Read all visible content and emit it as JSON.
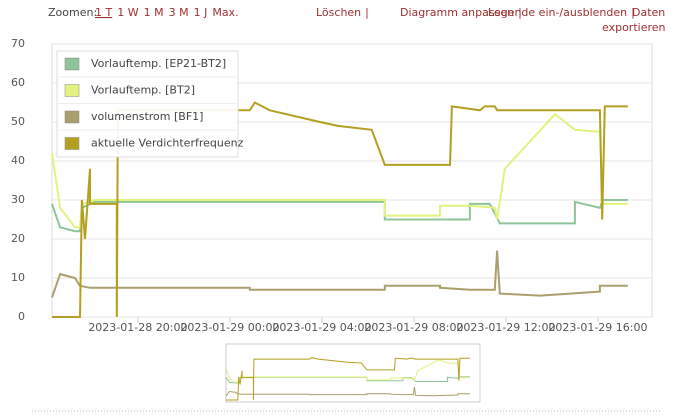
{
  "toolbar": {
    "zoom_label": "Zoomen:",
    "zoom_options": [
      "1 T",
      "1 W",
      "1 M",
      "3 M",
      "1 J",
      "Max."
    ],
    "actions": [
      "Löschen",
      "Diagramm anpassen",
      "Legende ein-/ausblenden",
      "Daten",
      "exportieren"
    ],
    "separator": "|"
  },
  "chart_data": {
    "type": "line",
    "xlim": [
      "2023-01-28 16:16",
      "2023-01-29 18:21"
    ],
    "xticks": [
      "2023-01-28 20:00",
      "2023-01-29 00:00",
      "2023-01-29 04:00",
      "2023-01-29 08:00",
      "2023-01-29 12:00",
      "2023-01-29 16:00"
    ],
    "ylim": [
      0,
      70
    ],
    "yticks": [
      0,
      10,
      20,
      30,
      40,
      50,
      60,
      70
    ],
    "grid": true,
    "legend": "top-left",
    "series": [
      {
        "name": "Vorlauftemp. [EP21-BT2]",
        "color": "#8fc49b",
        "x": [
          "2023-01-28 16:16",
          "2023-01-28 16:37",
          "2023-01-28 17:16",
          "2023-01-28 17:29",
          "2023-01-28 17:34",
          "2023-01-28 18:08",
          "2023-01-29 06:44",
          "2023-01-29 06:44",
          "2023-01-29 10:26",
          "2023-01-29 10:26",
          "2023-01-29 11:18",
          "2023-01-29 11:44",
          "2023-01-29 15:00",
          "2023-01-29 15:00",
          "2023-01-29 16:05",
          "2023-01-29 16:13",
          "2023-01-29 17:18"
        ],
        "values": [
          29,
          23,
          22,
          22,
          28,
          29.5,
          29.5,
          25,
          25,
          29,
          29,
          24,
          24,
          29.5,
          28,
          30,
          30
        ]
      },
      {
        "name": "Vorlauftemp. [BT2]",
        "color": "#e2f27e",
        "x": [
          "2023-01-28 16:16",
          "2023-01-28 16:37",
          "2023-01-28 17:16",
          "2023-01-28 17:29",
          "2023-01-28 17:34",
          "2023-01-28 18:08",
          "2023-01-29 06:44",
          "2023-01-29 06:44",
          "2023-01-29 09:08",
          "2023-01-29 09:08",
          "2023-01-29 10:26",
          "2023-01-29 11:31",
          "2023-01-29 11:37",
          "2023-01-29 11:57",
          "2023-01-29 14:08",
          "2023-01-29 15:00",
          "2023-01-29 16:05",
          "2023-01-29 16:13",
          "2023-01-29 17:18"
        ],
        "values": [
          42,
          28,
          23,
          23,
          29,
          30,
          30,
          26,
          26,
          28.5,
          28.5,
          28,
          25,
          38,
          52,
          48,
          47.5,
          29,
          29
        ]
      },
      {
        "name": "volumenstrom [BF1]",
        "color": "#aa9f6e",
        "x": [
          "2023-01-28 16:16",
          "2023-01-28 16:37",
          "2023-01-28 17:16",
          "2023-01-28 17:29",
          "2023-01-28 17:55",
          "2023-01-29 00:52",
          "2023-01-29 00:52",
          "2023-01-29 06:44",
          "2023-01-29 06:44",
          "2023-01-29 09:08",
          "2023-01-29 09:08",
          "2023-01-29 10:26",
          "2023-01-29 11:31",
          "2023-01-29 11:37",
          "2023-01-29 11:44",
          "2023-01-29 13:29",
          "2023-01-29 14:47",
          "2023-01-29 16:05",
          "2023-01-29 16:05",
          "2023-01-29 17:18"
        ],
        "values": [
          5,
          11,
          10,
          8,
          7.5,
          7.5,
          7,
          7,
          8,
          8,
          7.5,
          7,
          7,
          17,
          6,
          5.5,
          6,
          6.5,
          8,
          8
        ]
      },
      {
        "name": "aktuelle Verdichterfrequenz",
        "color": "#b3a021",
        "x": [
          "2023-01-28 16:16",
          "2023-01-28 17:29",
          "2023-01-28 17:34",
          "2023-01-28 17:42",
          "2023-01-28 17:55",
          "2023-01-28 17:55",
          "2023-01-28 19:05",
          "2023-01-28 19:05",
          "2023-01-28 19:08",
          "2023-01-29 00:52",
          "2023-01-29 01:05",
          "2023-01-29 01:44",
          "2023-01-29 03:55",
          "2023-01-29 04:42",
          "2023-01-29 06:10",
          "2023-01-29 06:44",
          "2023-01-29 09:34",
          "2023-01-29 09:39",
          "2023-01-29 10:52",
          "2023-01-29 11:05",
          "2023-01-29 11:31",
          "2023-01-29 11:37",
          "2023-01-29 16:05",
          "2023-01-29 16:11",
          "2023-01-29 16:18",
          "2023-01-29 17:18"
        ],
        "values": [
          0,
          0,
          30,
          20,
          38,
          29,
          29,
          0,
          53,
          53,
          55,
          53,
          50,
          49,
          48,
          39,
          39,
          54,
          53,
          54,
          54,
          53,
          53,
          25,
          54,
          54
        ]
      }
    ]
  }
}
